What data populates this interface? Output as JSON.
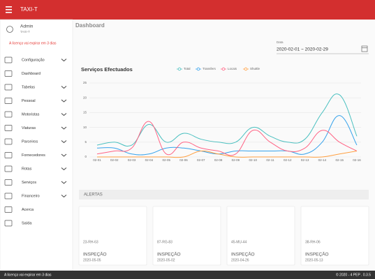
{
  "header": {
    "app_title": "TAXI-T"
  },
  "sidebar": {
    "user": {
      "name": "Admin",
      "company": "TAXI-T"
    },
    "license_warning": "A licença vai expirar em 3 dias",
    "menu": [
      {
        "label": "Configuração",
        "expandable": true
      },
      {
        "label": "Dashboard",
        "expandable": false
      },
      {
        "label": "Tabelas",
        "expandable": true
      },
      {
        "label": "Pessoal",
        "expandable": true
      },
      {
        "label": "Motoristas",
        "expandable": true
      },
      {
        "label": "Viaturas",
        "expandable": true
      },
      {
        "label": "Parceiros",
        "expandable": true
      },
      {
        "label": "Fornecedores",
        "expandable": true
      },
      {
        "label": "Rotas",
        "expandable": true
      },
      {
        "label": "Serviços",
        "expandable": true
      },
      {
        "label": "Financeiro",
        "expandable": true
      },
      {
        "label": "Acerca",
        "expandable": false
      },
      {
        "label": "Saída",
        "expandable": false
      }
    ]
  },
  "page": {
    "title": "Dashboard",
    "date_label": "Data",
    "date_range": "2020-02-01 ~ 2020-02-29"
  },
  "chart_data": {
    "type": "line",
    "title": "Serviços Efectuados",
    "categories": [
      "02-01",
      "02-02",
      "02-03",
      "02-04",
      "02-05",
      "02-06",
      "02-07",
      "02-08",
      "02-09",
      "02-10",
      "02-11",
      "02-12",
      "02-13",
      "02-14",
      "02-15",
      "02-16"
    ],
    "series": [
      {
        "name": "Total",
        "color": "#4bc0c0",
        "values": [
          4,
          5,
          4,
          11,
          5,
          8,
          6,
          5,
          5,
          10,
          7,
          5,
          6,
          15,
          21,
          7
        ]
      },
      {
        "name": "Transfers",
        "color": "#36a2eb",
        "values": [
          3,
          3,
          1,
          1,
          3,
          3,
          2,
          1,
          2,
          2,
          2,
          2,
          1,
          5,
          14,
          4
        ]
      },
      {
        "name": "Locais",
        "color": "#ff6384",
        "values": [
          1,
          2,
          3,
          12,
          1,
          5,
          3,
          2,
          1,
          9,
          5,
          2,
          3,
          9,
          5,
          2
        ]
      },
      {
        "name": "Shuttle",
        "color": "#ff9f40",
        "values": [
          0,
          0,
          0,
          0,
          0,
          0,
          2,
          1,
          0,
          0,
          0,
          0,
          0,
          0,
          1,
          2
        ]
      }
    ],
    "ylim": [
      0,
      25
    ],
    "yticks": [
      0,
      5,
      10,
      15,
      20,
      25
    ],
    "grid": true
  },
  "alerts": {
    "title": "ALERTAS",
    "items": [
      {
        "plate": "23-RH-63",
        "type": "INSPEÇÃO",
        "date": "2020-05-05"
      },
      {
        "plate": "87-RG-83",
        "type": "INSPEÇÃO",
        "date": "2020-05-02"
      },
      {
        "plate": "45-MU-44",
        "type": "INSPEÇÃO",
        "date": "2020-04-26"
      },
      {
        "plate": "38-RH-06",
        "type": "INSPEÇÃO",
        "date": "2020-05-13"
      }
    ]
  },
  "footer": {
    "license_warning": "A licença vai expirar em 3 dias",
    "copyright": "© 2020 - 4 PEP . 0.3.5"
  }
}
